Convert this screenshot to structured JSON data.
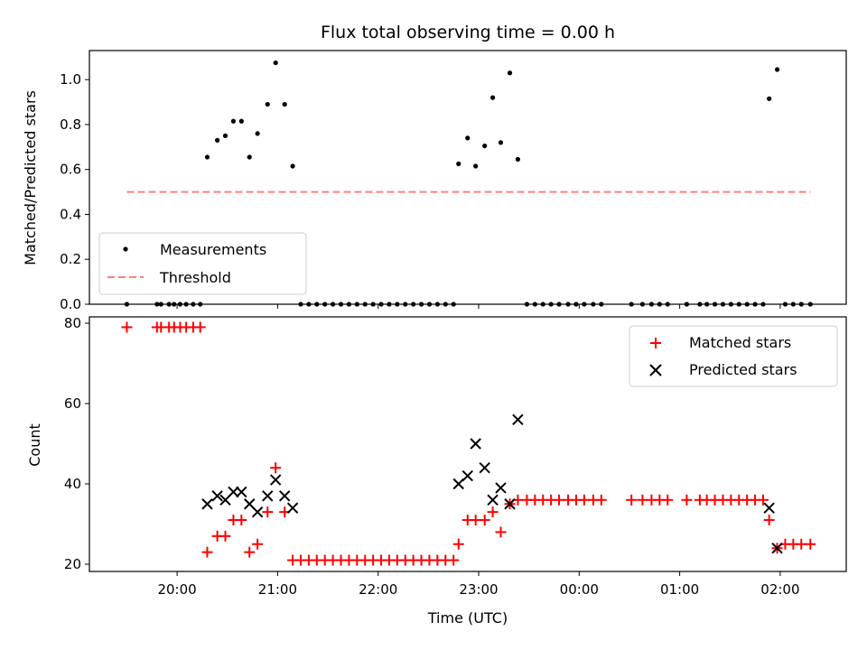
{
  "chart_data": [
    {
      "type": "scatter",
      "title": "Flux total observing time = 0.00 h",
      "xlabel": "",
      "ylabel": "Matched/Predicted stars",
      "ylim": [
        0,
        1.13
      ],
      "yticks": [
        "0.0",
        "0.2",
        "0.4",
        "0.6",
        "0.8",
        "1.0"
      ],
      "xticks": [
        "20:00",
        "21:00",
        "22:00",
        "23:00",
        "00:00",
        "01:00",
        "02:00"
      ],
      "x_unit": "hours after 19:00 UTC",
      "grid": false,
      "legend": {
        "placement": "lower-left",
        "entries": [
          "Measurements",
          "Threshold"
        ]
      },
      "series": [
        {
          "name": "Measurements",
          "points": [
            [
              0.5,
              0
            ],
            [
              0.8,
              0
            ],
            [
              0.84,
              0
            ],
            [
              0.92,
              0
            ],
            [
              0.97,
              0
            ],
            [
              1.03,
              0
            ],
            [
              1.09,
              0
            ],
            [
              1.16,
              0
            ],
            [
              1.23,
              0
            ],
            [
              1.3,
              0.655
            ],
            [
              1.4,
              0.73
            ],
            [
              1.48,
              0.75
            ],
            [
              1.56,
              0.815
            ],
            [
              1.64,
              0.815
            ],
            [
              1.72,
              0.655
            ],
            [
              1.8,
              0.76
            ],
            [
              1.9,
              0.89
            ],
            [
              1.98,
              1.075
            ],
            [
              2.07,
              0.89
            ],
            [
              2.15,
              0.615
            ],
            [
              2.23,
              0
            ],
            [
              2.31,
              0
            ],
            [
              2.39,
              0
            ],
            [
              2.47,
              0
            ],
            [
              2.55,
              0
            ],
            [
              2.63,
              0
            ],
            [
              2.71,
              0
            ],
            [
              2.79,
              0
            ],
            [
              2.87,
              0
            ],
            [
              2.95,
              0
            ],
            [
              3.03,
              0
            ],
            [
              3.11,
              0
            ],
            [
              3.19,
              0
            ],
            [
              3.27,
              0
            ],
            [
              3.35,
              0
            ],
            [
              3.43,
              0
            ],
            [
              3.51,
              0
            ],
            [
              3.59,
              0
            ],
            [
              3.67,
              0
            ],
            [
              3.75,
              0
            ],
            [
              3.8,
              0.625
            ],
            [
              3.89,
              0.74
            ],
            [
              3.97,
              0.615
            ],
            [
              4.06,
              0.705
            ],
            [
              4.14,
              0.92
            ],
            [
              4.22,
              0.72
            ],
            [
              4.31,
              1.03
            ],
            [
              4.39,
              0.645
            ],
            [
              4.48,
              0
            ],
            [
              4.56,
              0
            ],
            [
              4.64,
              0
            ],
            [
              4.72,
              0
            ],
            [
              4.8,
              0
            ],
            [
              4.89,
              0
            ],
            [
              4.97,
              0
            ],
            [
              5.05,
              0
            ],
            [
              5.14,
              0
            ],
            [
              5.22,
              0
            ],
            [
              5.52,
              0
            ],
            [
              5.63,
              0
            ],
            [
              5.72,
              0
            ],
            [
              5.8,
              0
            ],
            [
              5.88,
              0
            ],
            [
              6.07,
              0
            ],
            [
              6.2,
              0
            ],
            [
              6.27,
              0
            ],
            [
              6.35,
              0
            ],
            [
              6.43,
              0
            ],
            [
              6.51,
              0
            ],
            [
              6.59,
              0
            ],
            [
              6.67,
              0
            ],
            [
              6.75,
              0
            ],
            [
              6.83,
              0
            ],
            [
              6.89,
              0.915
            ],
            [
              6.97,
              1.045
            ],
            [
              7.05,
              0
            ],
            [
              7.13,
              0
            ],
            [
              7.21,
              0
            ],
            [
              7.3,
              0
            ]
          ]
        },
        {
          "name": "Threshold",
          "x": [
            0.5,
            7.3
          ],
          "y": [
            0.5,
            0.5
          ],
          "color": "#ff8080"
        }
      ]
    },
    {
      "type": "scatter",
      "title": "",
      "xlabel": "Time (UTC)",
      "ylabel": "Count",
      "ylim": [
        18,
        82.5
      ],
      "yticks": [
        "20",
        "40",
        "60",
        "80"
      ],
      "xticks": [
        "20:00",
        "21:00",
        "22:00",
        "23:00",
        "00:00",
        "01:00",
        "02:00"
      ],
      "x_unit": "hours after 19:00 UTC",
      "grid": false,
      "legend": {
        "placement": "top-right",
        "entries": [
          "Matched stars",
          "Predicted stars"
        ]
      },
      "series": [
        {
          "name": "Matched stars",
          "color": "#ff0000",
          "marker": "+",
          "points": [
            [
              0.5,
              79
            ],
            [
              0.8,
              79
            ],
            [
              0.84,
              79
            ],
            [
              0.92,
              79
            ],
            [
              0.97,
              79
            ],
            [
              1.03,
              79
            ],
            [
              1.09,
              79
            ],
            [
              1.16,
              79
            ],
            [
              1.23,
              79
            ],
            [
              1.3,
              23
            ],
            [
              1.4,
              27
            ],
            [
              1.48,
              27
            ],
            [
              1.56,
              31
            ],
            [
              1.64,
              31
            ],
            [
              1.72,
              23
            ],
            [
              1.8,
              25
            ],
            [
              1.9,
              33
            ],
            [
              1.98,
              44
            ],
            [
              2.07,
              33
            ],
            [
              2.15,
              21
            ],
            [
              2.23,
              21
            ],
            [
              2.31,
              21
            ],
            [
              2.39,
              21
            ],
            [
              2.47,
              21
            ],
            [
              2.55,
              21
            ],
            [
              2.63,
              21
            ],
            [
              2.71,
              21
            ],
            [
              2.79,
              21
            ],
            [
              2.87,
              21
            ],
            [
              2.95,
              21
            ],
            [
              3.03,
              21
            ],
            [
              3.11,
              21
            ],
            [
              3.19,
              21
            ],
            [
              3.27,
              21
            ],
            [
              3.35,
              21
            ],
            [
              3.43,
              21
            ],
            [
              3.51,
              21
            ],
            [
              3.59,
              21
            ],
            [
              3.67,
              21
            ],
            [
              3.75,
              21
            ],
            [
              3.8,
              25
            ],
            [
              3.89,
              31
            ],
            [
              3.97,
              31
            ],
            [
              4.06,
              31
            ],
            [
              4.14,
              33
            ],
            [
              4.22,
              28
            ],
            [
              4.31,
              35
            ],
            [
              4.39,
              36
            ],
            [
              4.48,
              36
            ],
            [
              4.56,
              36
            ],
            [
              4.64,
              36
            ],
            [
              4.72,
              36
            ],
            [
              4.8,
              36
            ],
            [
              4.89,
              36
            ],
            [
              4.97,
              36
            ],
            [
              5.05,
              36
            ],
            [
              5.14,
              36
            ],
            [
              5.22,
              36
            ],
            [
              5.52,
              36
            ],
            [
              5.63,
              36
            ],
            [
              5.72,
              36
            ],
            [
              5.8,
              36
            ],
            [
              5.88,
              36
            ],
            [
              6.07,
              36
            ],
            [
              6.2,
              36
            ],
            [
              6.27,
              36
            ],
            [
              6.35,
              36
            ],
            [
              6.43,
              36
            ],
            [
              6.51,
              36
            ],
            [
              6.59,
              36
            ],
            [
              6.67,
              36
            ],
            [
              6.75,
              36
            ],
            [
              6.83,
              36
            ],
            [
              6.89,
              31
            ],
            [
              6.97,
              24
            ],
            [
              7.05,
              25
            ],
            [
              7.13,
              25
            ],
            [
              7.21,
              25
            ],
            [
              7.3,
              25
            ]
          ]
        },
        {
          "name": "Predicted stars",
          "color": "#000000",
          "marker": "x",
          "points": [
            [
              1.3,
              35
            ],
            [
              1.4,
              37
            ],
            [
              1.48,
              36
            ],
            [
              1.56,
              38
            ],
            [
              1.64,
              38
            ],
            [
              1.72,
              35
            ],
            [
              1.8,
              33
            ],
            [
              1.9,
              37
            ],
            [
              1.98,
              41
            ],
            [
              2.07,
              37
            ],
            [
              2.15,
              34
            ],
            [
              3.8,
              40
            ],
            [
              3.89,
              42
            ],
            [
              3.97,
              50
            ],
            [
              4.06,
              44
            ],
            [
              4.14,
              36
            ],
            [
              4.22,
              39
            ],
            [
              4.31,
              35
            ],
            [
              4.39,
              56
            ],
            [
              6.89,
              34
            ],
            [
              6.97,
              24
            ]
          ]
        }
      ]
    }
  ]
}
